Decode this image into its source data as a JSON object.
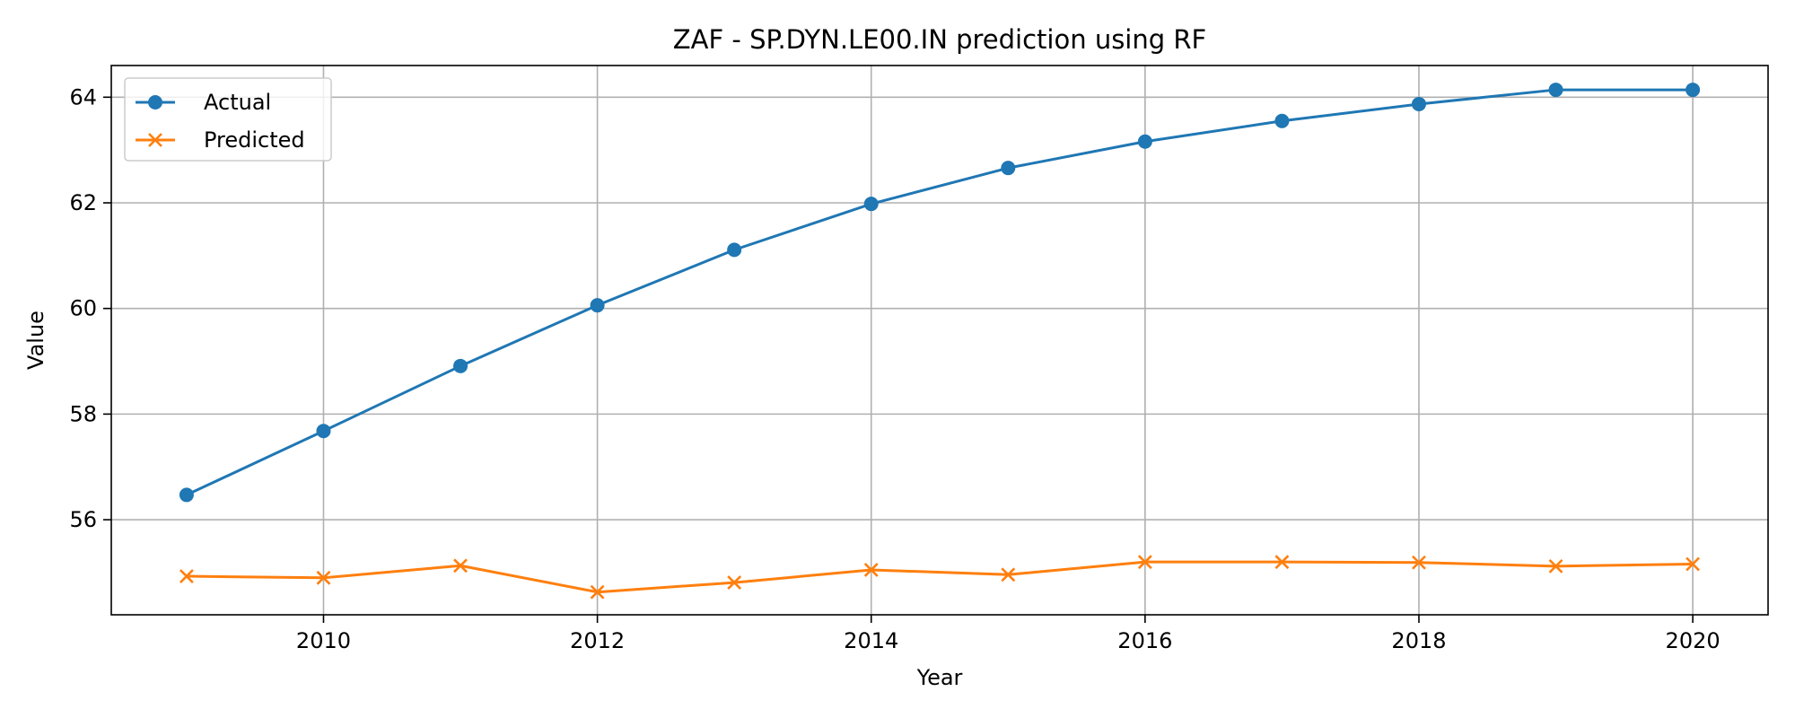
{
  "chart_data": {
    "type": "line",
    "title": "ZAF - SP.DYN.LE00.IN prediction using RF",
    "xlabel": "Year",
    "ylabel": "Value",
    "x": [
      2009,
      2010,
      2011,
      2012,
      2013,
      2014,
      2015,
      2016,
      2017,
      2018,
      2019,
      2020
    ],
    "xlim": [
      2008.45,
      2020.55
    ],
    "ylim": [
      54.2,
      64.6
    ],
    "xticks": [
      2010,
      2012,
      2014,
      2016,
      2018,
      2020
    ],
    "yticks": [
      56,
      58,
      60,
      62,
      64
    ],
    "grid": true,
    "legend_position": "top-left",
    "series": [
      {
        "name": "Actual",
        "color": "#1f77b4",
        "marker": "circle",
        "values": [
          56.47,
          57.68,
          58.91,
          60.06,
          61.11,
          61.98,
          62.66,
          63.16,
          63.55,
          63.87,
          64.14,
          64.14
        ]
      },
      {
        "name": "Predicted",
        "color": "#ff7f0e",
        "marker": "x",
        "values": [
          54.93,
          54.9,
          55.13,
          54.63,
          54.81,
          55.05,
          54.96,
          55.2,
          55.2,
          55.19,
          55.12,
          55.16
        ]
      }
    ]
  }
}
